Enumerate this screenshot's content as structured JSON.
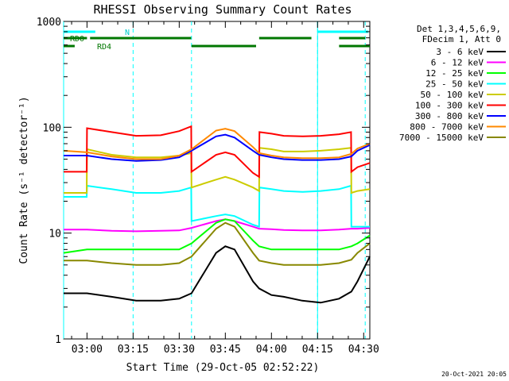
{
  "chart_data": {
    "type": "line",
    "title": "RHESSI Observing Summary Count Rates",
    "xlabel": "Start Time (29-Oct-05 02:52:22)",
    "ylabel": "Count Rate (s⁻¹ detector⁻¹)",
    "yscale": "log",
    "ylim": [
      1,
      1000
    ],
    "xlim_minutes": [
      172.4,
      272.0
    ],
    "x_ticks": [
      {
        "label": "03:00",
        "minutes": 180
      },
      {
        "label": "03:15",
        "minutes": 195
      },
      {
        "label": "03:30",
        "minutes": 210
      },
      {
        "label": "03:45",
        "minutes": 225
      },
      {
        "label": "04:00",
        "minutes": 240
      },
      {
        "label": "04:15",
        "minutes": 255
      },
      {
        "label": "04:30",
        "minutes": 270
      }
    ],
    "y_ticks": [
      {
        "label": "1",
        "value": 1
      },
      {
        "label": "10",
        "value": 10
      },
      {
        "label": "100",
        "value": 100
      },
      {
        "label": "1000",
        "value": 1000
      }
    ],
    "legend": {
      "placement": "top-right",
      "header": [
        "Det 1,3,4,5,6,9,",
        "FDecim 1, Att 0"
      ]
    },
    "series": [
      {
        "name": "3 - 6 keV",
        "color": "#000000",
        "x": [
          172.4,
          180,
          188,
          196,
          204,
          210,
          214,
          222,
          225,
          228,
          234,
          236,
          240,
          244,
          250,
          256,
          262,
          266,
          268,
          272
        ],
        "y": [
          2.7,
          2.7,
          2.5,
          2.3,
          2.3,
          2.4,
          2.7,
          6.5,
          7.5,
          7.0,
          3.5,
          3.0,
          2.6,
          2.5,
          2.3,
          2.2,
          2.4,
          2.8,
          3.5,
          6.0
        ]
      },
      {
        "name": "6 - 12 keV",
        "color": "#ff00ff",
        "x": [
          172.4,
          180,
          188,
          196,
          204,
          210,
          214,
          222,
          225,
          228,
          234,
          236,
          240,
          244,
          250,
          256,
          262,
          266,
          268,
          272
        ],
        "y": [
          10.8,
          10.8,
          10.5,
          10.4,
          10.5,
          10.6,
          11.2,
          13.0,
          13.5,
          13.0,
          11.5,
          11.0,
          10.9,
          10.7,
          10.6,
          10.6,
          10.8,
          11.0,
          11.0,
          11.2
        ]
      },
      {
        "name": "12 - 25 keV",
        "color": "#00ff00",
        "x": [
          172.4,
          180,
          188,
          196,
          204,
          210,
          214,
          222,
          225,
          228,
          234,
          236,
          240,
          244,
          250,
          256,
          262,
          266,
          268,
          272
        ],
        "y": [
          6.5,
          7.0,
          7.0,
          7.0,
          7.0,
          7.0,
          8.0,
          12.5,
          13.5,
          13.0,
          8.5,
          7.5,
          7.0,
          7.0,
          7.0,
          7.0,
          7.0,
          7.5,
          8.0,
          9.5
        ]
      },
      {
        "name": "25 - 50 keV",
        "color": "#00ffff",
        "x": [
          172.4,
          179.9,
          180,
          188,
          196,
          204,
          210,
          213.9,
          214,
          222,
          225,
          228,
          234,
          236,
          236.1,
          240,
          244,
          250,
          256,
          262,
          265.9,
          266,
          268,
          272
        ],
        "y": [
          22,
          22,
          28,
          26,
          24,
          24,
          25,
          27,
          13,
          14.5,
          15,
          14.5,
          12,
          11.5,
          27,
          26,
          25,
          24.5,
          25,
          26,
          28,
          11.5,
          11.5,
          11.5
        ]
      },
      {
        "name": "50 - 100 keV",
        "color": "#cccc00",
        "x": [
          172.4,
          179.9,
          180,
          188,
          196,
          204,
          210,
          213.9,
          214,
          222,
          225,
          228,
          234,
          236,
          236.1,
          240,
          244,
          250,
          256,
          262,
          265.9,
          266,
          268,
          272
        ],
        "y": [
          24,
          24,
          62,
          55,
          52,
          52,
          54,
          57,
          27,
          32,
          34,
          32,
          27,
          25,
          64,
          62,
          59,
          59,
          60,
          62,
          64,
          24,
          25,
          26
        ]
      },
      {
        "name": "100 - 300 keV",
        "color": "#ff0000",
        "x": [
          172.4,
          179.9,
          180,
          188,
          196,
          204,
          210,
          213.9,
          214,
          222,
          225,
          228,
          234,
          236,
          236.1,
          240,
          244,
          250,
          256,
          262,
          265.9,
          266,
          268,
          272
        ],
        "y": [
          38,
          38,
          98,
          90,
          83,
          84,
          92,
          102,
          38,
          55,
          58,
          55,
          37,
          34,
          90,
          87,
          83,
          82,
          83,
          86,
          90,
          38,
          42,
          46
        ]
      },
      {
        "name": "300 - 800 keV",
        "color": "#0000ff",
        "x": [
          172.4,
          180,
          188,
          196,
          204,
          210,
          214,
          222,
          225,
          228,
          234,
          236,
          240,
          244,
          250,
          256,
          262,
          266,
          268,
          272
        ],
        "y": [
          54,
          54,
          50,
          48,
          49,
          52,
          60,
          82,
          85,
          80,
          60,
          55,
          52,
          50,
          49,
          49,
          50,
          53,
          60,
          68
        ]
      },
      {
        "name": "800 - 7000 keV",
        "color": "#ff8800",
        "x": [
          172.4,
          180,
          188,
          196,
          204,
          210,
          214,
          222,
          225,
          228,
          234,
          236,
          240,
          244,
          250,
          256,
          262,
          266,
          268,
          272
        ],
        "y": [
          60,
          58,
          53,
          50,
          50,
          54,
          62,
          93,
          97,
          92,
          65,
          57,
          54,
          52,
          51,
          51,
          52,
          56,
          63,
          70
        ]
      },
      {
        "name": "7000 - 15000 keV",
        "color": "#888800",
        "x": [
          172.4,
          180,
          188,
          196,
          204,
          210,
          214,
          222,
          225,
          228,
          234,
          236,
          240,
          244,
          250,
          256,
          262,
          266,
          268,
          272
        ],
        "y": [
          5.5,
          5.5,
          5.2,
          5.0,
          5.0,
          5.2,
          6.0,
          11.0,
          12.5,
          11.5,
          6.5,
          5.5,
          5.2,
          5.0,
          5.0,
          5.0,
          5.2,
          5.6,
          6.5,
          8.0
        ]
      }
    ],
    "annotations": {
      "night_intervals_minutes": [
        [
          172.4,
          182.7
        ],
        [
          255.0,
          271.5
        ]
      ],
      "saa_label": "N",
      "rd0_label": "RD0",
      "rd4_label": "RD4",
      "rd0_intervals_minutes": [
        [
          172.4,
          180
        ],
        [
          181,
          213.9
        ],
        [
          236,
          253
        ],
        [
          262,
          270.5
        ]
      ],
      "rd4_intervals_minutes": [
        [
          172.4,
          176
        ],
        [
          214,
          235
        ],
        [
          262,
          272
        ]
      ],
      "vertical_markers_minutes": [
        195,
        214,
        255,
        270.5
      ]
    },
    "footer_timestamp": "20-Oct-2021 20:05"
  }
}
